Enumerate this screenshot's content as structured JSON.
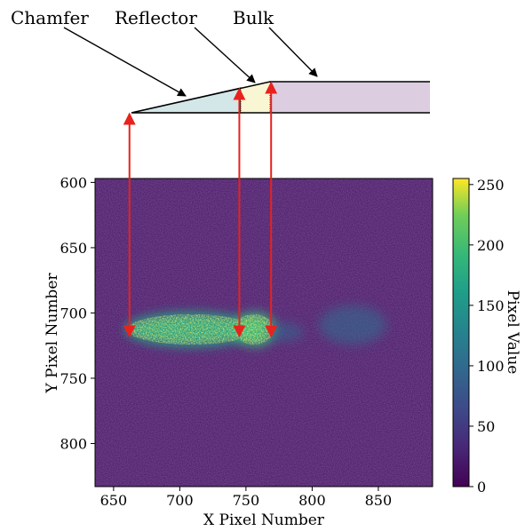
{
  "labels": {
    "chamfer": "Chamfer",
    "reflector": "Reflector",
    "bulk": "Bulk"
  },
  "colors": {
    "chamfer_fill": "#d3e6e8",
    "reflector_fill": "#f8f6d3",
    "bulk_fill": "#dccde0",
    "arrow": "#e8221c",
    "heatmap_background": "#46105f"
  },
  "chart_data": {
    "type": "heatmap",
    "xlabel": "X Pixel Number",
    "ylabel": "Y Pixel Number",
    "xlim": [
      636,
      891
    ],
    "ylim": [
      833,
      597
    ],
    "xticks": [
      650,
      700,
      750,
      800,
      850
    ],
    "yticks": [
      600,
      650,
      700,
      750,
      800
    ],
    "colorbar": {
      "label": "Pixel Value",
      "range": [
        0,
        255
      ],
      "ticks": [
        0,
        50,
        100,
        150,
        200,
        250
      ],
      "colormap": "viridis"
    },
    "markers": {
      "x_values": [
        662,
        745,
        769
      ],
      "y_value": 718
    }
  }
}
